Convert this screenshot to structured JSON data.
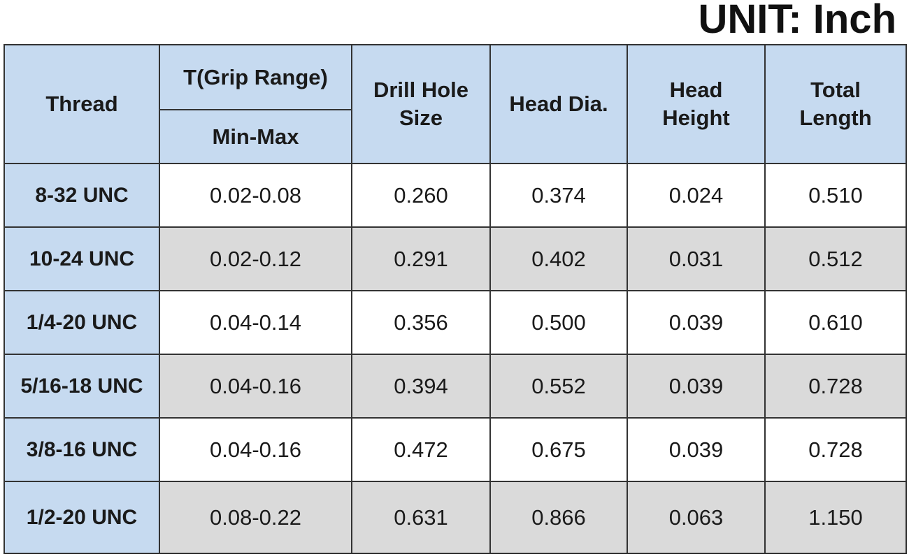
{
  "unit_label": "UNIT: Inch",
  "table": {
    "header": {
      "thread": "Thread",
      "grip_range": "T(Grip Range)",
      "grip_sub": "Min-Max",
      "columns": [
        "Drill Hole Size",
        "Head Dia.",
        "Head Height",
        "Total Length"
      ]
    },
    "rows": [
      [
        "8-32 UNC",
        "0.02-0.08",
        "0.260",
        "0.374",
        "0.024",
        "0.510"
      ],
      [
        "10-24 UNC",
        "0.02-0.12",
        "0.291",
        "0.402",
        "0.031",
        "0.512"
      ],
      [
        "1/4-20 UNC",
        "0.04-0.14",
        "0.356",
        "0.500",
        "0.039",
        "0.610"
      ],
      [
        "5/16-18 UNC",
        "0.04-0.16",
        "0.394",
        "0.552",
        "0.039",
        "0.728"
      ],
      [
        "3/8-16 UNC",
        "0.04-0.16",
        "0.472",
        "0.675",
        "0.039",
        "0.728"
      ],
      [
        "1/2-20 UNC",
        "0.08-0.22",
        "0.631",
        "0.866",
        "0.063",
        "1.150"
      ]
    ]
  }
}
